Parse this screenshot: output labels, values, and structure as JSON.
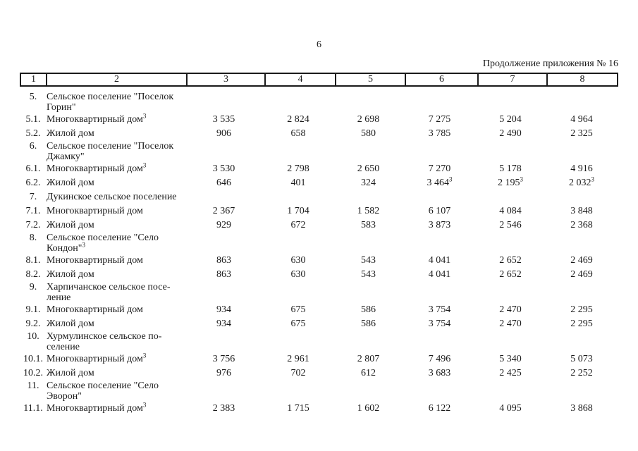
{
  "page": {
    "number": "6",
    "continuation_note": "Продолжение приложения № 16"
  },
  "table": {
    "header_columns": [
      "1",
      "2",
      "3",
      "4",
      "5",
      "6",
      "7",
      "8"
    ],
    "rows": [
      {
        "num": "5.",
        "section": true,
        "label_lines": [
          "Сельское поселение \"Поселок",
          "Горин\""
        ],
        "values": [
          "",
          "",
          "",
          "",
          "",
          ""
        ]
      },
      {
        "num": "5.1.",
        "label_lines": [
          "Многоквартирный дом"
        ],
        "label_sup": "3",
        "values": [
          "3 535",
          "2 824",
          "2 698",
          "7 275",
          "5 204",
          "4 964"
        ]
      },
      {
        "num": "5.2.",
        "label_lines": [
          "Жилой дом"
        ],
        "values": [
          "906",
          "658",
          "580",
          "3 785",
          "2 490",
          "2 325"
        ]
      },
      {
        "num": "6.",
        "section": true,
        "label_lines": [
          "Сельское поселение \"Поселок",
          "Джамку\""
        ],
        "values": [
          "",
          "",
          "",
          "",
          "",
          ""
        ]
      },
      {
        "num": "6.1.",
        "label_lines": [
          "Многоквартирный дом"
        ],
        "label_sup": "3",
        "values": [
          "3 530",
          "2 798",
          "2 650",
          "7 270",
          "5 178",
          "4 916"
        ]
      },
      {
        "num": "6.2.",
        "label_lines": [
          "Жилой дом"
        ],
        "values": [
          "646",
          "401",
          "324",
          "3 464",
          "2 195",
          "2 032"
        ],
        "value_sups": [
          null,
          null,
          null,
          "3",
          "3",
          "3"
        ]
      },
      {
        "num": "7.",
        "section": true,
        "label_lines": [
          "Дукинское сельское поселение"
        ],
        "values": [
          "",
          "",
          "",
          "",
          "",
          ""
        ]
      },
      {
        "num": "7.1.",
        "label_lines": [
          "Многоквартирный дом"
        ],
        "values": [
          "2 367",
          "1 704",
          "1 582",
          "6 107",
          "4 084",
          "3 848"
        ]
      },
      {
        "num": "7.2.",
        "label_lines": [
          "Жилой дом"
        ],
        "values": [
          "929",
          "672",
          "583",
          "3 873",
          "2 546",
          "2 368"
        ]
      },
      {
        "num": "8.",
        "section": true,
        "label_lines": [
          "Сельское поселение \"Село",
          "Кондон\""
        ],
        "label_sup": "3",
        "values": [
          "",
          "",
          "",
          "",
          "",
          ""
        ]
      },
      {
        "num": "8.1.",
        "label_lines": [
          "Многоквартирный дом"
        ],
        "values": [
          "863",
          "630",
          "543",
          "4 041",
          "2 652",
          "2 469"
        ]
      },
      {
        "num": "8.2.",
        "label_lines": [
          "Жилой дом"
        ],
        "values": [
          "863",
          "630",
          "543",
          "4 041",
          "2 652",
          "2 469"
        ]
      },
      {
        "num": "9.",
        "section": true,
        "label_lines": [
          "Харпичанское сельское посе-",
          "ление"
        ],
        "values": [
          "",
          "",
          "",
          "",
          "",
          ""
        ]
      },
      {
        "num": "9.1.",
        "label_lines": [
          "Многоквартирный дом"
        ],
        "values": [
          "934",
          "675",
          "586",
          "3 754",
          "2 470",
          "2 295"
        ]
      },
      {
        "num": "9.2.",
        "label_lines": [
          "Жилой дом"
        ],
        "values": [
          "934",
          "675",
          "586",
          "3 754",
          "2 470",
          "2 295"
        ]
      },
      {
        "num": "10.",
        "section": true,
        "label_lines": [
          "Хурмулинское сельское по-",
          "селение"
        ],
        "values": [
          "",
          "",
          "",
          "",
          "",
          ""
        ]
      },
      {
        "num": "10.1.",
        "label_lines": [
          "Многоквартирный дом"
        ],
        "label_sup": "3",
        "values": [
          "3 756",
          "2 961",
          "2 807",
          "7 496",
          "5 340",
          "5 073"
        ]
      },
      {
        "num": "10.2.",
        "label_lines": [
          "Жилой дом"
        ],
        "values": [
          "976",
          "702",
          "612",
          "3 683",
          "2 425",
          "2 252"
        ]
      },
      {
        "num": "11.",
        "section": true,
        "label_lines": [
          "Сельское поселение \"Село",
          "Эворон\""
        ],
        "values": [
          "",
          "",
          "",
          "",
          "",
          ""
        ]
      },
      {
        "num": "11.1.",
        "label_lines": [
          "Многоквартирный дом"
        ],
        "label_sup": "3",
        "values": [
          "2 383",
          "1 715",
          "1 602",
          "6 122",
          "4 095",
          "3 868"
        ]
      }
    ]
  }
}
